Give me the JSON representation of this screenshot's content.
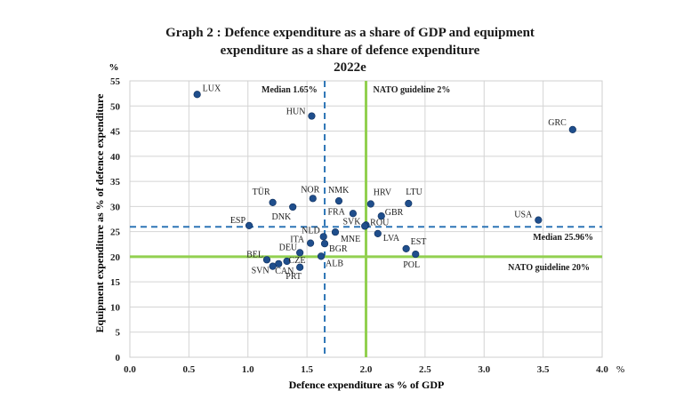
{
  "chart_data": {
    "type": "scatter",
    "title_lines": [
      "Graph 2 : Defence expenditure as a share of GDP and equipment",
      "expenditure as a share of defence expenditure",
      "2022e"
    ],
    "xlabel": "Defence expenditure as % of GDP",
    "ylabel": "Equipment expenditure as % of defence expenditure",
    "x_unit": "%",
    "y_unit": "%",
    "xlim": [
      0,
      4.0
    ],
    "ylim": [
      0,
      55
    ],
    "x_ticks": [
      "0.0",
      "0.5",
      "1.0",
      "1.5",
      "2.0",
      "2.5",
      "3.0",
      "3.5",
      "4.0"
    ],
    "y_ticks": [
      "0",
      "5",
      "10",
      "15",
      "20",
      "25",
      "30",
      "35",
      "40",
      "45",
      "50",
      "55"
    ],
    "grid": true,
    "point_color": "#1f4e8c",
    "points": [
      {
        "label": "LUX",
        "x": 0.57,
        "y": 52.3
      },
      {
        "label": "HUN",
        "x": 1.54,
        "y": 48.0
      },
      {
        "label": "GRC",
        "x": 3.75,
        "y": 45.3
      },
      {
        "label": "TÜR",
        "x": 1.21,
        "y": 30.8
      },
      {
        "label": "NOR",
        "x": 1.55,
        "y": 31.6
      },
      {
        "label": "NMK",
        "x": 1.77,
        "y": 31.1
      },
      {
        "label": "HRV",
        "x": 2.04,
        "y": 30.5
      },
      {
        "label": "LTU",
        "x": 2.36,
        "y": 30.6
      },
      {
        "label": "DNK",
        "x": 1.38,
        "y": 29.9
      },
      {
        "label": "FRA",
        "x": 1.89,
        "y": 28.6
      },
      {
        "label": "GBR",
        "x": 2.13,
        "y": 28.1
      },
      {
        "label": "USA",
        "x": 3.46,
        "y": 27.3
      },
      {
        "label": "ESP",
        "x": 1.01,
        "y": 26.2
      },
      {
        "label": "SVK",
        "x": 2.0,
        "y": 26.3
      },
      {
        "label": "ROU",
        "x": 1.99,
        "y": 26.1
      },
      {
        "label": "NLD",
        "x": 1.64,
        "y": 24.0
      },
      {
        "label": "MNE",
        "x": 1.74,
        "y": 24.9
      },
      {
        "label": "LVA",
        "x": 2.1,
        "y": 24.6
      },
      {
        "label": "ITA",
        "x": 1.53,
        "y": 22.7
      },
      {
        "label": "BGR",
        "x": 1.65,
        "y": 22.6
      },
      {
        "label": "EST",
        "x": 2.34,
        "y": 21.6
      },
      {
        "label": "DEU",
        "x": 1.44,
        "y": 20.8
      },
      {
        "label": "POL",
        "x": 2.42,
        "y": 20.5
      },
      {
        "label": "ALB",
        "x": 1.62,
        "y": 20.1
      },
      {
        "label": "BEL",
        "x": 1.16,
        "y": 19.4
      },
      {
        "label": "CZE",
        "x": 1.33,
        "y": 19.1
      },
      {
        "label": "CAN",
        "x": 1.26,
        "y": 18.6
      },
      {
        "label": "SVN",
        "x": 1.21,
        "y": 18.1
      },
      {
        "label": "PRT",
        "x": 1.44,
        "y": 17.9
      }
    ],
    "reference_lines": [
      {
        "orientation": "vertical",
        "value": 1.65,
        "style": "dashed",
        "color": "#2e75b6",
        "label": "Median 1.65%"
      },
      {
        "orientation": "vertical",
        "value": 2.0,
        "style": "solid",
        "color": "#92d050",
        "label": "NATO guideline 2%"
      },
      {
        "orientation": "horizontal",
        "value": 25.96,
        "style": "dashed",
        "color": "#2e75b6",
        "label": "Median 25.96%"
      },
      {
        "orientation": "horizontal",
        "value": 20.0,
        "style": "solid",
        "color": "#92d050",
        "label": "NATO guideline 20%"
      }
    ]
  }
}
